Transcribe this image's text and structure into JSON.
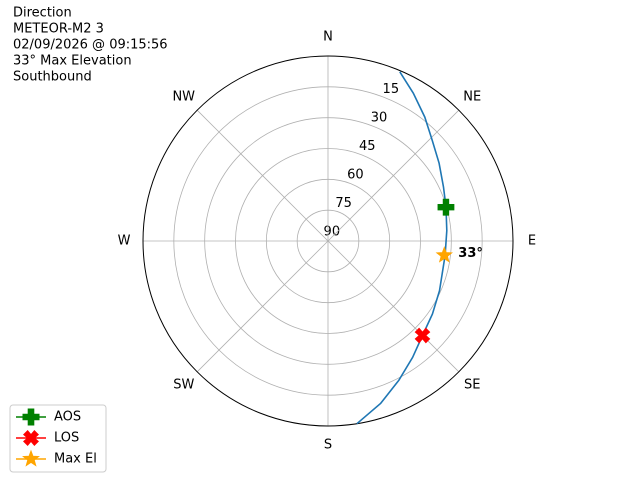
{
  "chart_data": {
    "type": "polar",
    "title_lines": [
      "Direction",
      "METEOR-M2 3",
      "02/09/2026 @ 09:15:56",
      "33° Max Elevation",
      "Southbound"
    ],
    "rlim": [
      90,
      0
    ],
    "rticks": [
      15,
      30,
      45,
      60,
      75,
      90
    ],
    "thetaticks": [
      {
        "value": 0,
        "label": "N"
      },
      {
        "value": 45,
        "label": "NE"
      },
      {
        "value": 90,
        "label": "E"
      },
      {
        "value": 135,
        "label": "SE"
      },
      {
        "value": 180,
        "label": "S"
      },
      {
        "value": 225,
        "label": "SW"
      },
      {
        "value": 270,
        "label": "W"
      },
      {
        "value": 315,
        "label": "NW"
      }
    ],
    "grid": true,
    "legend": "lower left",
    "track": {
      "color": "#1f77b4",
      "azimuth": [
        23,
        30,
        38,
        46,
        55,
        65,
        74,
        85,
        97,
        114,
        125,
        135,
        144,
        153,
        162,
        171
      ],
      "elevation": [
        0.6,
        7,
        13.5,
        19.5,
        24,
        28,
        30.3,
        32,
        32.6,
        30.6,
        28,
        25,
        20,
        14,
        7,
        0
      ]
    },
    "series": [
      {
        "name": "AOS",
        "color": "green",
        "marker": "plus",
        "azimuth": [
          74
        ],
        "values": [
          30.3
        ]
      },
      {
        "name": "LOS",
        "color": "red",
        "marker": "x",
        "azimuth": [
          135
        ],
        "values": [
          25
        ]
      },
      {
        "name": "Max El",
        "color": "orange",
        "marker": "star",
        "azimuth": [
          97
        ],
        "values": [
          33
        ],
        "value_labels": [
          "33°"
        ]
      }
    ]
  }
}
